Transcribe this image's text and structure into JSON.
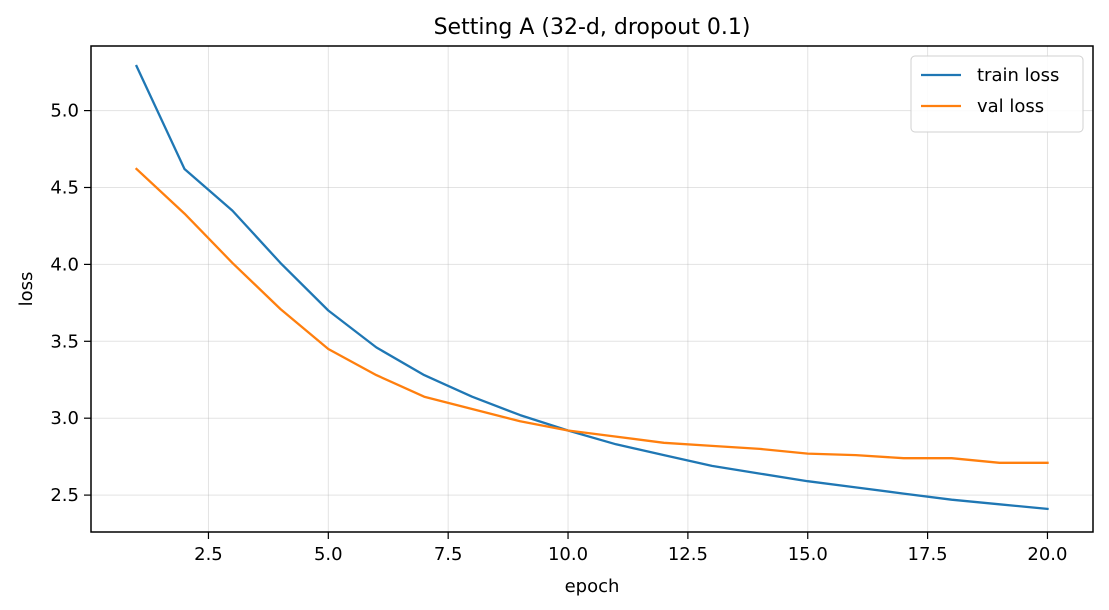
{
  "chart_data": {
    "type": "line",
    "title": "Setting A (32-d, dropout 0.1)",
    "xlabel": "epoch",
    "ylabel": "loss",
    "xlim": [
      0.05,
      20.95
    ],
    "ylim": [
      2.26,
      5.42
    ],
    "xticks": [
      2.5,
      5.0,
      7.5,
      10.0,
      12.5,
      15.0,
      17.5,
      20.0
    ],
    "xtick_labels": [
      "2.5",
      "5.0",
      "7.5",
      "10.0",
      "12.5",
      "15.0",
      "17.5",
      "20.0"
    ],
    "yticks": [
      2.5,
      3.0,
      3.5,
      4.0,
      4.5,
      5.0
    ],
    "ytick_labels": [
      "2.5",
      "3.0",
      "3.5",
      "4.0",
      "4.5",
      "5.0"
    ],
    "grid": true,
    "legend_position": "top-right",
    "x": [
      1,
      2,
      3,
      4,
      5,
      6,
      7,
      8,
      9,
      10,
      11,
      12,
      13,
      14,
      15,
      16,
      17,
      18,
      19,
      20
    ],
    "series": [
      {
        "name": "train loss",
        "color": "#1f77b4",
        "values": [
          5.29,
          4.62,
          4.35,
          4.01,
          3.7,
          3.46,
          3.28,
          3.14,
          3.02,
          2.92,
          2.83,
          2.76,
          2.69,
          2.64,
          2.59,
          2.55,
          2.51,
          2.47,
          2.44,
          2.41
        ]
      },
      {
        "name": "val loss",
        "color": "#ff7f0e",
        "values": [
          4.62,
          4.33,
          4.01,
          3.71,
          3.45,
          3.28,
          3.14,
          3.06,
          2.98,
          2.92,
          2.88,
          2.84,
          2.82,
          2.8,
          2.77,
          2.76,
          2.74,
          2.74,
          2.71,
          2.71
        ]
      }
    ]
  }
}
